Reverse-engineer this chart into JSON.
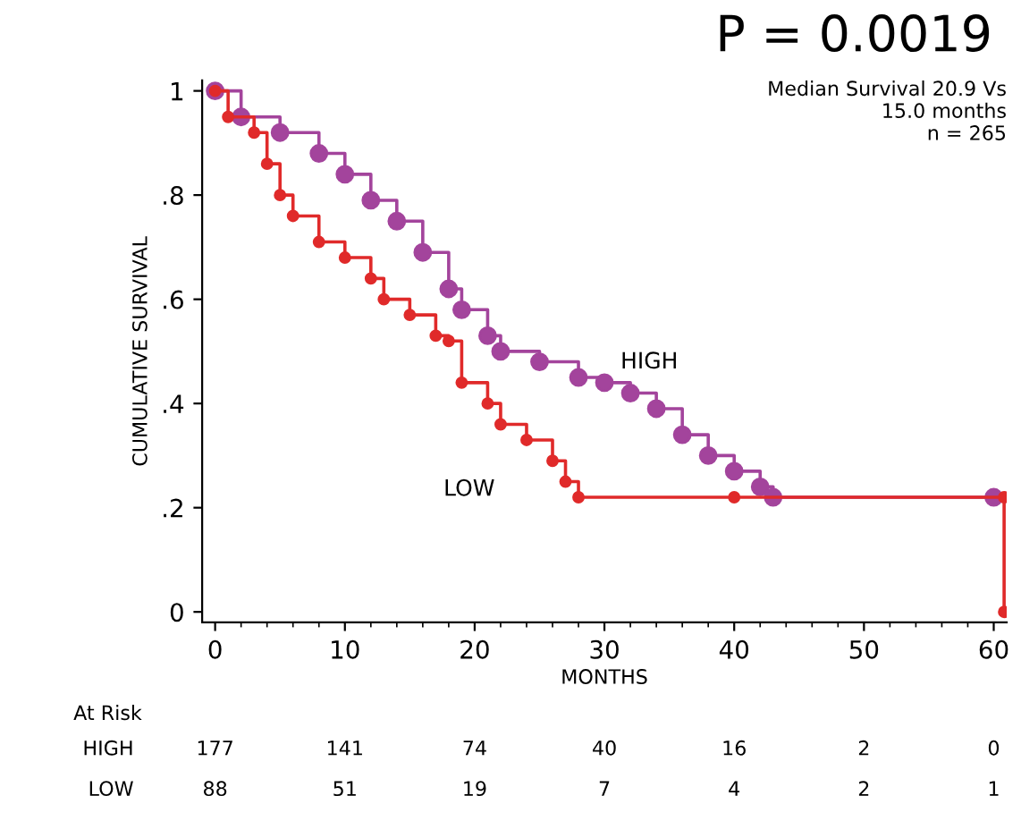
{
  "chart_data": {
    "type": "step",
    "title": "P = 0.0019",
    "xlabel": "MONTHS",
    "ylabel": "CUMULATIVE SURVIVAL",
    "series": [
      {
        "name": "HIGH",
        "color": "#a3449c",
        "x": [
          0,
          2,
          5,
          8,
          10,
          12,
          14,
          16,
          18,
          19,
          21,
          22,
          25,
          28,
          30,
          32,
          34,
          36,
          38,
          40,
          42,
          43,
          60
        ],
        "values": [
          1.0,
          0.95,
          0.92,
          0.88,
          0.84,
          0.79,
          0.75,
          0.69,
          0.62,
          0.58,
          0.53,
          0.5,
          0.48,
          0.45,
          0.44,
          0.42,
          0.39,
          0.34,
          0.3,
          0.27,
          0.24,
          0.22,
          0.22
        ]
      },
      {
        "name": "LOW",
        "color": "#e02a2a",
        "x": [
          0,
          1,
          3,
          4,
          5,
          6,
          8,
          10,
          12,
          13,
          15,
          17,
          18,
          19,
          21,
          22,
          24,
          26,
          27,
          28,
          40,
          60.8,
          60.8
        ],
        "values": [
          1.0,
          0.95,
          0.92,
          0.86,
          0.8,
          0.76,
          0.71,
          0.68,
          0.64,
          0.6,
          0.57,
          0.53,
          0.52,
          0.44,
          0.4,
          0.36,
          0.33,
          0.29,
          0.25,
          0.22,
          0.22,
          0.22,
          0.0
        ]
      }
    ],
    "marker": "circle",
    "grid": false,
    "legend": false,
    "xlim": [
      -1,
      61
    ],
    "xticks": [
      0,
      10,
      20,
      30,
      40,
      50,
      60
    ],
    "ylim": [
      -0.02,
      1.02
    ],
    "yticks": [
      {
        "value": 0,
        "label": "0"
      },
      {
        "value": 0.2,
        "label": ".2"
      },
      {
        "value": 0.4,
        "label": ".4"
      },
      {
        "value": 0.6,
        "label": ".6"
      },
      {
        "value": 0.8,
        "label": ".8"
      },
      {
        "value": 1,
        "label": "1"
      }
    ],
    "annotations": [
      "Median Survival 20.9 Vs\n15.0 months\nn = 265",
      "At Risk",
      "HIGH",
      "177",
      "141",
      "74",
      "40",
      "16",
      "2",
      "0",
      "LOW",
      "88",
      "51",
      "19",
      "7",
      "4",
      "2",
      "1"
    ]
  }
}
